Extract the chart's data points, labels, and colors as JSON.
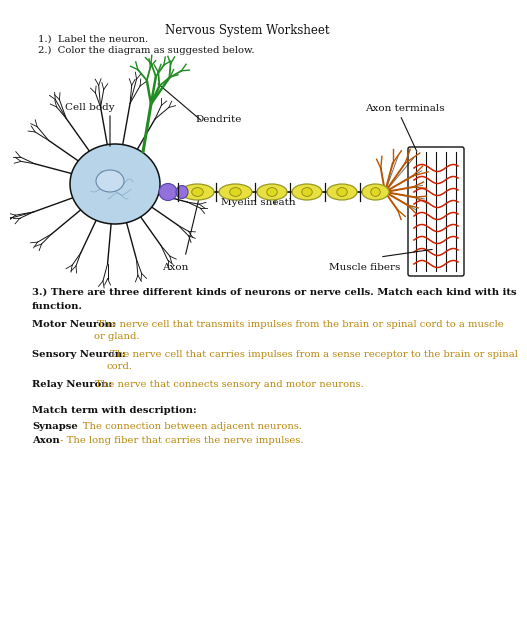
{
  "title": "Nervous System Worksheet",
  "instruction1": "1.)  Label the neuron.",
  "instruction2": "2.)  Color the diagram as suggested below.",
  "q3_line1": "3.) There are three different kinds of neurons or nerve cells. Match each kind with its",
  "q3_line2": "function.",
  "motor_bold": "Motor Neuron:",
  "motor_text": " The nerve cell that transmits impulses from the brain or spinal cord to a muscle",
  "motor_text2": "or gland.",
  "sensory_bold": "Sensory Neuron:",
  "sensory_text": " The nerve cell that carries impulses from a sense receptor to the brain or spinal",
  "sensory_text2": "cord.",
  "relay_bold": "Relay Neuron:",
  "relay_text": " The nerve that connects sensory and motor neurons.",
  "match_bold": "Match term with description:",
  "synapse_bold": "Synapse",
  "synapse_text": " -  The connection between adjacent neurons.",
  "axon_term_bold": "Axon",
  "axon_term_text": " - The long fiber that carries the nerve impulses.",
  "label_cell_body": "Cell body",
  "label_dendrite": "Dendrite",
  "label_axon": "Axon",
  "label_myelin": "Myelin sheath",
  "label_muscle": "Muscle fibers",
  "label_axon_term": "Axon terminals",
  "bg_color": "#ffffff",
  "black": "#111111",
  "orange": "#b8860b",
  "green": "#228B22",
  "purple": "#9370DB",
  "blue_fill": "#b8d4e8",
  "yellow_fill": "#e8e040",
  "red_fiber": "#cc2200",
  "title_fs": 8.5,
  "text_fs": 7.2,
  "label_fs": 7.5
}
